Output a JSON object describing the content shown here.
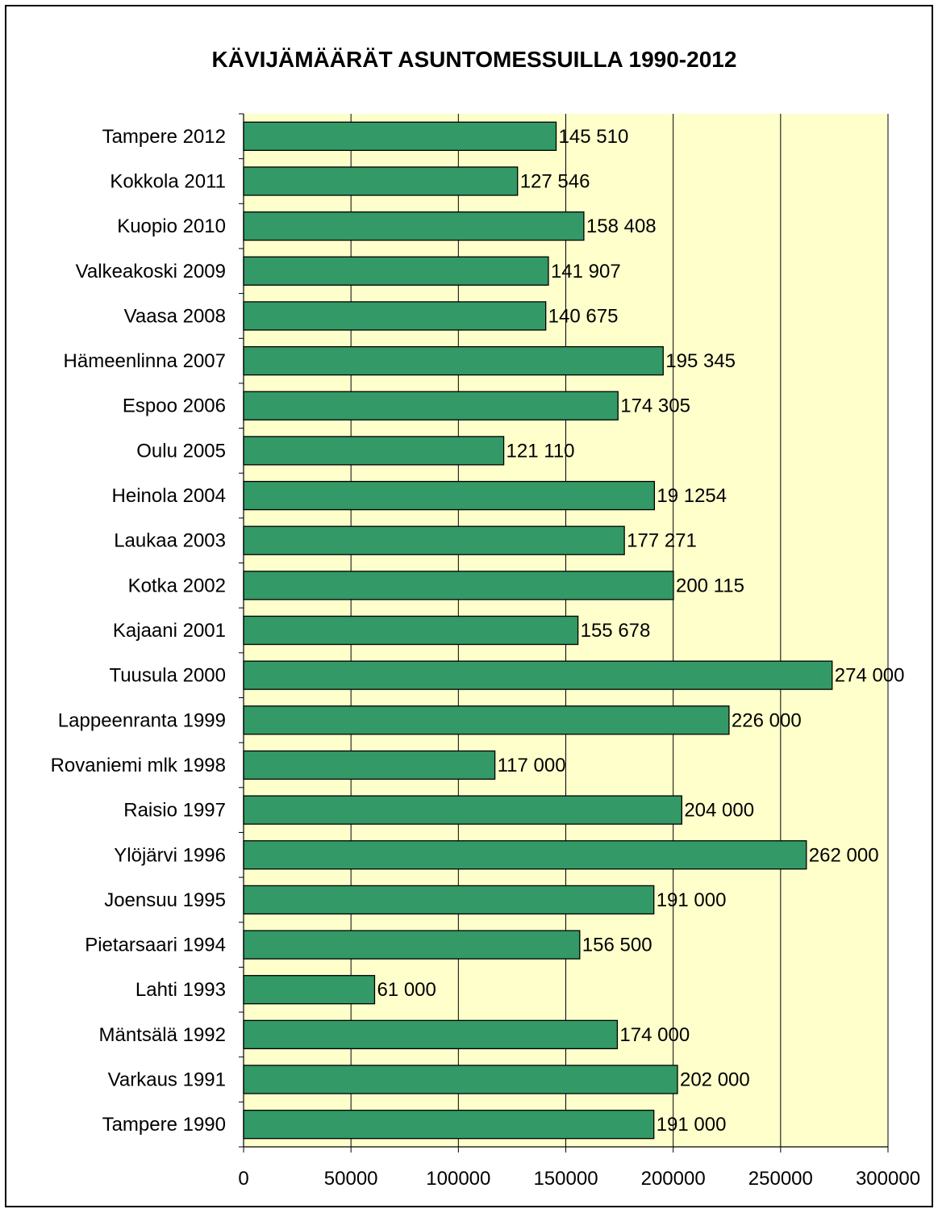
{
  "chart_data": {
    "type": "bar",
    "orientation": "horizontal",
    "title": "KÄVIJÄMÄÄRÄT ASUNTOMESSUILLA 1990-2012",
    "xlabel": "",
    "ylabel": "",
    "xlim": [
      0,
      300000
    ],
    "x_ticks": [
      0,
      50000,
      100000,
      150000,
      200000,
      250000,
      300000
    ],
    "x_tick_labels": [
      "0",
      "50000",
      "100000",
      "150000",
      "200000",
      "250000",
      "300000"
    ],
    "grid": "vertical major gridlines",
    "legend": "none",
    "colors": {
      "bar": "#339966",
      "plot_background": "#ffffcc",
      "grid": "#000000"
    },
    "categories": [
      "Tampere 2012",
      "Kokkola 2011",
      "Kuopio 2010",
      "Valkeakoski 2009",
      "Vaasa 2008",
      "Hämeenlinna 2007",
      "Espoo 2006",
      "Oulu 2005",
      "Heinola 2004",
      "Laukaa 2003",
      "Kotka 2002",
      "Kajaani 2001",
      "Tuusula 2000",
      "Lappeenranta 1999",
      "Rovaniemi mlk 1998",
      "Raisio 1997",
      "Ylöjärvi 1996",
      "Joensuu 1995",
      "Pietarsaari 1994",
      "Lahti 1993",
      "Mäntsälä 1992",
      "Varkaus 1991",
      "Tampere 1990"
    ],
    "values": [
      145510,
      127546,
      158408,
      141907,
      140675,
      195345,
      174305,
      121110,
      191254,
      177271,
      200115,
      155678,
      274000,
      226000,
      117000,
      204000,
      262000,
      191000,
      156500,
      61000,
      174000,
      202000,
      191000
    ],
    "data_labels": [
      "145 510",
      "127 546",
      "158 408",
      "141 907",
      "140 675",
      "195 345",
      "174 305",
      "121 110",
      "19 1254",
      "177 271",
      "200 115",
      "155 678",
      "274 000",
      "226 000",
      "117 000",
      "204 000",
      "262 000",
      "191 000",
      "156 500",
      "61 000",
      "174 000",
      "202 000",
      "191 000"
    ]
  }
}
